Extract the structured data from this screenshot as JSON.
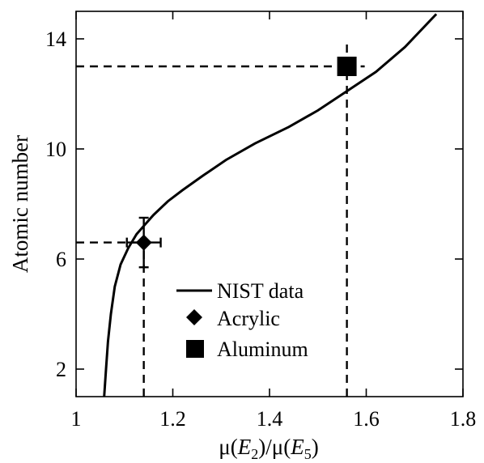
{
  "chart_data": {
    "type": "line",
    "title": "",
    "xlabel": "μ(E2)/μ(E5)",
    "xlabel_parts": {
      "mu1": "μ(",
      "e1": "E",
      "sub1": "2",
      "mid": ")/μ(",
      "e2": "E",
      "sub2": "5",
      "end": ")"
    },
    "ylabel": "Atomic number",
    "xlim": [
      1,
      1.8
    ],
    "ylim": [
      1,
      15
    ],
    "xticks": [
      1,
      1.2,
      1.4,
      1.6,
      1.8
    ],
    "xtick_labels": [
      "1",
      "1.2",
      "1.4",
      "1.6",
      "1.8"
    ],
    "yticks": [
      2,
      6,
      10,
      14
    ],
    "ytick_labels": [
      "2",
      "6",
      "10",
      "14"
    ],
    "grid": false,
    "legend_position": "center",
    "series": [
      {
        "name": "NIST data",
        "style": "solid-line",
        "x": [
          1.058,
          1.062,
          1.066,
          1.072,
          1.08,
          1.092,
          1.108,
          1.125,
          1.14,
          1.16,
          1.19,
          1.22,
          1.26,
          1.31,
          1.37,
          1.44,
          1.5,
          1.56,
          1.62,
          1.68,
          1.745
        ],
        "y": [
          1.0,
          2.0,
          3.0,
          4.0,
          5.0,
          5.8,
          6.4,
          6.9,
          7.2,
          7.6,
          8.1,
          8.5,
          9.0,
          9.6,
          10.2,
          10.8,
          11.4,
          12.1,
          12.8,
          13.7,
          14.9
        ]
      },
      {
        "name": "Acrylic",
        "marker": "diamond",
        "x": [
          1.14
        ],
        "y": [
          6.6
        ],
        "xerr": 0.035,
        "yerr": 0.9
      },
      {
        "name": "Aluminum",
        "marker": "square",
        "x": [
          1.56
        ],
        "y": [
          13.0
        ]
      }
    ],
    "reference_lines": [
      {
        "x": 1.14,
        "y": 6.6
      },
      {
        "x": 1.56,
        "y": 13.0
      }
    ]
  }
}
